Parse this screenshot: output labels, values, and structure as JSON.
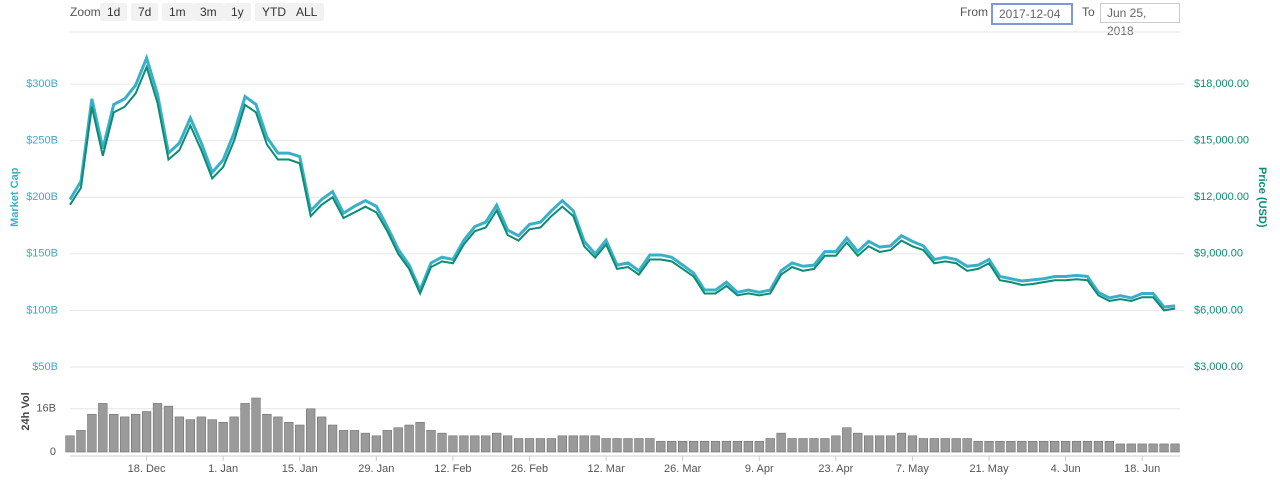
{
  "controls": {
    "zoom_label": "Zoom",
    "zoom_buttons": [
      "1d",
      "7d",
      "1m",
      "3m",
      "1y",
      "YTD",
      "ALL"
    ],
    "from_label": "From",
    "from_value": "2017-12-04",
    "to_label": "To",
    "to_value": "Jun 25, 2018"
  },
  "chart_data": [
    {
      "type": "line",
      "categories": [
        null,
        null,
        null,
        null,
        null,
        null,
        null,
        "18. Dec",
        null,
        null,
        null,
        null,
        null,
        null,
        "1. Jan",
        null,
        null,
        null,
        null,
        null,
        null,
        "15. Jan",
        null,
        null,
        null,
        null,
        null,
        null,
        "29. Jan",
        null,
        null,
        null,
        null,
        null,
        null,
        "12. Feb",
        null,
        null,
        null,
        null,
        null,
        null,
        "26. Feb",
        null,
        null,
        null,
        null,
        null,
        null,
        "12. Mar",
        null,
        null,
        null,
        null,
        null,
        null,
        "26. Mar",
        null,
        null,
        null,
        null,
        null,
        null,
        "9. Apr",
        null,
        null,
        null,
        null,
        null,
        null,
        "23. Apr",
        null,
        null,
        null,
        null,
        null,
        null,
        "7. May",
        null,
        null,
        null,
        null,
        null,
        null,
        "21. May",
        null,
        null,
        null,
        null,
        null,
        null,
        "4. Jun",
        null,
        null,
        null,
        null,
        null,
        null,
        "18. Jun",
        null,
        null,
        null
      ],
      "series": [
        {
          "name": "Market Cap",
          "color": "#3ab0c8",
          "values": [
            198,
            214,
            287,
            243,
            282,
            287,
            299,
            323,
            291,
            239,
            248,
            270,
            248,
            222,
            233,
            257,
            289,
            282,
            253,
            239,
            239,
            236,
            188,
            198,
            205,
            186,
            192,
            197,
            192,
            174,
            154,
            140,
            118,
            142,
            147,
            145,
            162,
            174,
            178,
            193,
            171,
            166,
            176,
            178,
            188,
            197,
            188,
            161,
            150,
            162,
            140,
            142,
            135,
            149,
            149,
            147,
            140,
            133,
            118,
            118,
            125,
            116,
            118,
            116,
            118,
            135,
            142,
            139,
            140,
            152,
            152,
            164,
            152,
            161,
            156,
            157,
            166,
            161,
            157,
            145,
            147,
            145,
            139,
            140,
            145,
            130,
            128,
            126,
            127,
            128,
            130,
            130,
            131,
            130,
            116,
            111,
            113,
            111,
            115,
            115,
            103,
            104
          ]
        },
        {
          "name": "Price (USD)",
          "color": "#0b8c73",
          "axis": "y2",
          "values": [
            11600,
            12500,
            16800,
            14200,
            16500,
            16800,
            17500,
            18900,
            17000,
            14000,
            14500,
            15800,
            14500,
            13000,
            13600,
            15000,
            16900,
            16500,
            14800,
            14000,
            14000,
            13800,
            11000,
            11600,
            12000,
            10900,
            11200,
            11500,
            11200,
            10200,
            9000,
            8200,
            6900,
            8300,
            8600,
            8500,
            9500,
            10200,
            10400,
            11300,
            10000,
            9700,
            10300,
            10400,
            11000,
            11500,
            11000,
            9400,
            8800,
            9500,
            8200,
            8300,
            7900,
            8700,
            8700,
            8600,
            8200,
            7800,
            6900,
            6900,
            7300,
            6800,
            6900,
            6800,
            6900,
            7900,
            8300,
            8100,
            8200,
            8900,
            8900,
            9600,
            8900,
            9400,
            9100,
            9200,
            9700,
            9400,
            9200,
            8500,
            8600,
            8500,
            8100,
            8200,
            8500,
            7600,
            7500,
            7350,
            7400,
            7500,
            7600,
            7600,
            7650,
            7600,
            6800,
            6500,
            6600,
            6500,
            6700,
            6700,
            6000,
            6100
          ]
        }
      ],
      "ylim": [
        50,
        350
      ],
      "yticks": [
        {
          "value": 50,
          "label": "$50B"
        },
        {
          "value": 100,
          "label": "$100B"
        },
        {
          "value": 150,
          "label": "$150B"
        },
        {
          "value": 200,
          "label": "$200B"
        },
        {
          "value": 250,
          "label": "$250B"
        },
        {
          "value": 300,
          "label": "$300B"
        }
      ],
      "y2lim": [
        3000,
        21000
      ],
      "y2ticks": [
        {
          "value": 3000,
          "label": "$3,000.00"
        },
        {
          "value": 6000,
          "label": "$6,000.00"
        },
        {
          "value": 9000,
          "label": "$9,000.00"
        },
        {
          "value": 12000,
          "label": "$12,000.00"
        },
        {
          "value": 15000,
          "label": "$15,000.00"
        },
        {
          "value": 18000,
          "label": "$18,000.00"
        }
      ],
      "grid": true
    },
    {
      "type": "bar",
      "ylabel": "24h Vol",
      "color": "#9a9a9a",
      "values": [
        6,
        8,
        14,
        18,
        14,
        13,
        14,
        15,
        18,
        17,
        13,
        12,
        13,
        12,
        11,
        13,
        18,
        20,
        14,
        13,
        11,
        10,
        16,
        13,
        10,
        8,
        8,
        7,
        6,
        8,
        9,
        10,
        11,
        8,
        7,
        6,
        6,
        6,
        6,
        7,
        6,
        5,
        5,
        5,
        5,
        6,
        6,
        6,
        6,
        5,
        5,
        5,
        5,
        5,
        4,
        4,
        4,
        4,
        4,
        4,
        4,
        4,
        4,
        4,
        5,
        7,
        5,
        5,
        5,
        5,
        6,
        9,
        7,
        6,
        6,
        6,
        7,
        6,
        5,
        5,
        5,
        5,
        5,
        4,
        4,
        4,
        4,
        4,
        4,
        4,
        4,
        4,
        4,
        4,
        4,
        4,
        3,
        3,
        3,
        3,
        3,
        3
      ],
      "ylim": [
        0,
        30
      ],
      "yticks": [
        0,
        {
          "value": 16,
          "label": "16B"
        }
      ],
      "grid": true
    }
  ]
}
